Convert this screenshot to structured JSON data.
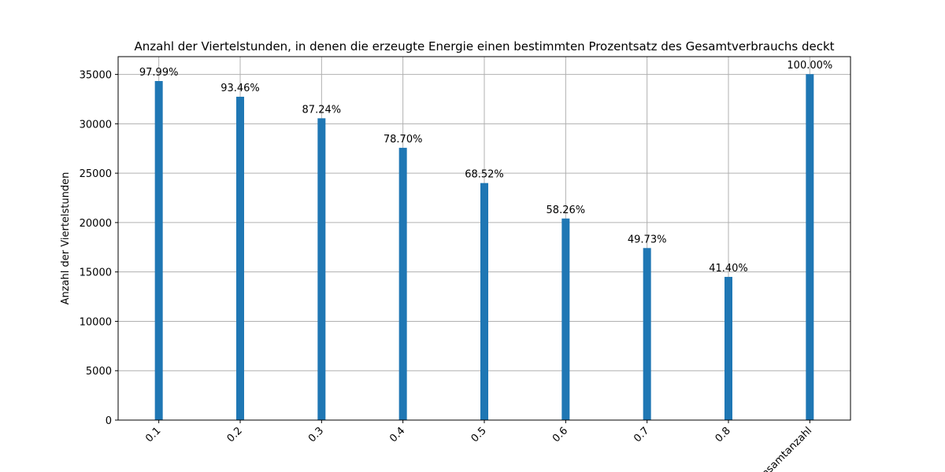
{
  "chart_data": {
    "type": "bar",
    "title": "Anzahl der Viertelstunden, in denen die erzeugte Energie einen bestimmten Prozentsatz des Gesamtverbrauchs deckt",
    "xlabel": "",
    "ylabel": "Anzahl der Viertelstunden",
    "categories": [
      "0.1",
      "0.2",
      "0.3",
      "0.4",
      "0.5",
      "0.6",
      "0.7",
      "0.8",
      "Gesamtanzahl"
    ],
    "values": [
      34330,
      32740,
      30560,
      27570,
      24000,
      20410,
      17420,
      14500,
      35030
    ],
    "bar_labels": [
      "97.99%",
      "93.46%",
      "87.24%",
      "78.70%",
      "68.52%",
      "58.26%",
      "49.73%",
      "41.40%",
      "100.00%"
    ],
    "yticks": [
      0,
      5000,
      10000,
      15000,
      20000,
      25000,
      30000,
      35000
    ],
    "ylim": [
      0,
      36800
    ],
    "grid": true,
    "bar_color": "#1f77b4"
  }
}
